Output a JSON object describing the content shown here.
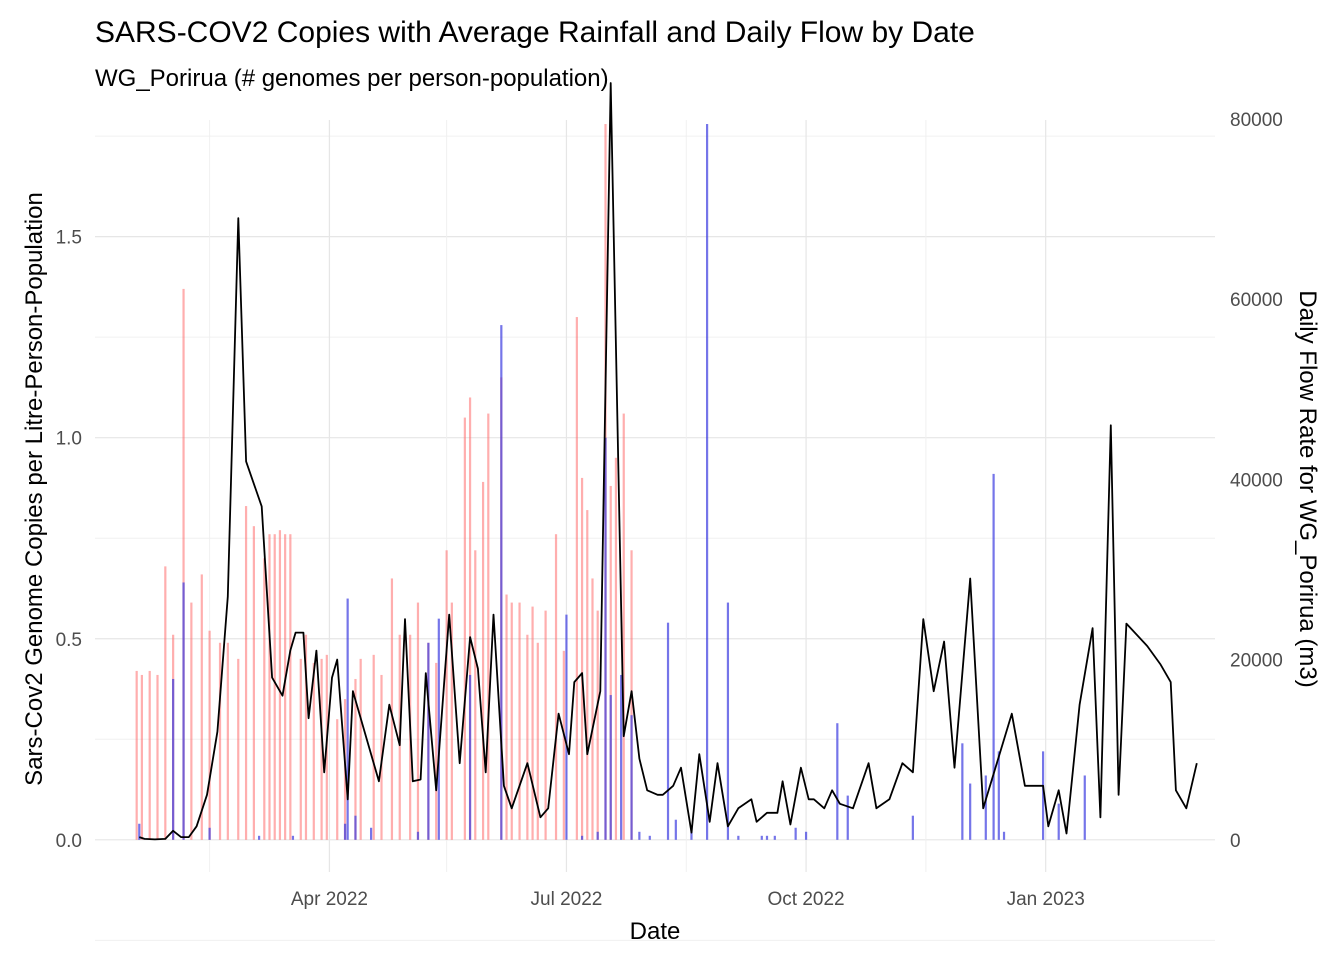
{
  "chart_data": {
    "type": "bar+line",
    "title": "SARS-COV2 Copies with Average Rainfall and Daily Flow by Date",
    "subtitle": "WG_Porirua (# genomes per person-population)",
    "xlabel": "Date",
    "ylabel": "Sars-Cov2 Genome Copies per Litre-Person-Population",
    "y2label": "Daily Flow Rate for WG_Porirua (m3)",
    "x_ticks": [
      "Apr 2022",
      "Jul 2022",
      "Oct 2022",
      "Jan 2023"
    ],
    "y_ticks": [
      "0.0",
      "0.5",
      "1.0",
      "1.5"
    ],
    "y2_ticks": [
      "0",
      "20000",
      "40000",
      "60000",
      "80000"
    ],
    "ylim": [
      -0.08,
      1.79
    ],
    "y2lim": [
      0,
      80000
    ],
    "grid": true,
    "series": [
      {
        "kind": "bar",
        "color": "#ff6b6b",
        "opacity": 0.55,
        "points": [
          [
            "2022-01-17",
            0.42
          ],
          [
            "2022-01-19",
            0.41
          ],
          [
            "2022-01-22",
            0.42
          ],
          [
            "2022-01-25",
            0.41
          ],
          [
            "2022-01-28",
            0.68
          ],
          [
            "2022-01-31",
            0.51
          ],
          [
            "2022-02-04",
            1.37
          ],
          [
            "2022-02-07",
            0.59
          ],
          [
            "2022-02-11",
            0.66
          ],
          [
            "2022-02-14",
            0.52
          ],
          [
            "2022-02-18",
            0.49
          ],
          [
            "2022-02-21",
            0.49
          ],
          [
            "2022-02-25",
            0.45
          ],
          [
            "2022-02-28",
            0.83
          ],
          [
            "2022-03-03",
            0.78
          ],
          [
            "2022-03-07",
            0.7
          ],
          [
            "2022-03-09",
            0.76
          ],
          [
            "2022-03-11",
            0.76
          ],
          [
            "2022-03-13",
            0.77
          ],
          [
            "2022-03-15",
            0.76
          ],
          [
            "2022-03-17",
            0.76
          ],
          [
            "2022-03-21",
            0.45
          ],
          [
            "2022-03-23",
            0.51
          ],
          [
            "2022-03-26",
            0.44
          ],
          [
            "2022-03-29",
            0.45
          ],
          [
            "2022-03-31",
            0.46
          ],
          [
            "2022-04-04",
            0.3
          ],
          [
            "2022-04-07",
            0.35
          ],
          [
            "2022-04-11",
            0.4
          ],
          [
            "2022-04-13",
            0.45
          ],
          [
            "2022-04-18",
            0.46
          ],
          [
            "2022-04-21",
            0.41
          ],
          [
            "2022-04-25",
            0.65
          ],
          [
            "2022-04-28",
            0.51
          ],
          [
            "2022-05-02",
            0.51
          ],
          [
            "2022-05-05",
            0.59
          ],
          [
            "2022-05-09",
            0.49
          ],
          [
            "2022-05-12",
            0.44
          ],
          [
            "2022-05-16",
            0.72
          ],
          [
            "2022-05-18",
            0.59
          ],
          [
            "2022-05-23",
            1.05
          ],
          [
            "2022-05-25",
            1.1
          ],
          [
            "2022-05-27",
            0.72
          ],
          [
            "2022-05-30",
            0.89
          ],
          [
            "2022-06-01",
            1.06
          ],
          [
            "2022-06-06",
            1.15
          ],
          [
            "2022-06-08",
            0.61
          ],
          [
            "2022-06-10",
            0.59
          ],
          [
            "2022-06-13",
            0.59
          ],
          [
            "2022-06-16",
            0.51
          ],
          [
            "2022-06-18",
            0.58
          ],
          [
            "2022-06-20",
            0.49
          ],
          [
            "2022-06-23",
            0.57
          ],
          [
            "2022-06-27",
            0.76
          ],
          [
            "2022-06-30",
            0.47
          ],
          [
            "2022-07-05",
            1.3
          ],
          [
            "2022-07-07",
            0.9
          ],
          [
            "2022-07-09",
            0.82
          ],
          [
            "2022-07-11",
            0.65
          ],
          [
            "2022-07-13",
            0.57
          ],
          [
            "2022-07-16",
            1.78
          ],
          [
            "2022-07-18",
            0.88
          ],
          [
            "2022-07-20",
            0.95
          ],
          [
            "2022-07-23",
            1.06
          ],
          [
            "2022-07-26",
            0.72
          ]
        ]
      },
      {
        "kind": "bar",
        "color": "#3a3ae0",
        "opacity": 0.7,
        "points": [
          [
            "2022-01-18",
            0.04
          ],
          [
            "2022-01-31",
            0.4
          ],
          [
            "2022-02-04",
            0.64
          ],
          [
            "2022-02-14",
            0.03
          ],
          [
            "2022-03-05",
            0.01
          ],
          [
            "2022-03-18",
            0.01
          ],
          [
            "2022-04-07",
            0.04
          ],
          [
            "2022-04-08",
            0.6
          ],
          [
            "2022-04-11",
            0.06
          ],
          [
            "2022-04-17",
            0.03
          ],
          [
            "2022-05-05",
            0.02
          ],
          [
            "2022-05-09",
            0.49
          ],
          [
            "2022-05-13",
            0.55
          ],
          [
            "2022-05-25",
            0.41
          ],
          [
            "2022-06-06",
            1.28
          ],
          [
            "2022-07-01",
            0.56
          ],
          [
            "2022-07-07",
            0.01
          ],
          [
            "2022-07-13",
            0.02
          ],
          [
            "2022-07-16",
            1.0
          ],
          [
            "2022-07-18",
            0.36
          ],
          [
            "2022-07-22",
            0.41
          ],
          [
            "2022-07-26",
            0.31
          ],
          [
            "2022-07-29",
            0.02
          ],
          [
            "2022-08-02",
            0.01
          ],
          [
            "2022-08-09",
            0.54
          ],
          [
            "2022-08-12",
            0.05
          ],
          [
            "2022-08-18",
            0.03
          ],
          [
            "2022-08-24",
            1.78
          ],
          [
            "2022-09-01",
            0.59
          ],
          [
            "2022-09-05",
            0.01
          ],
          [
            "2022-09-14",
            0.01
          ],
          [
            "2022-09-16",
            0.01
          ],
          [
            "2022-09-19",
            0.01
          ],
          [
            "2022-09-27",
            0.03
          ],
          [
            "2022-10-01",
            0.02
          ],
          [
            "2022-10-13",
            0.29
          ],
          [
            "2022-10-17",
            0.11
          ],
          [
            "2022-11-11",
            0.06
          ],
          [
            "2022-11-30",
            0.24
          ],
          [
            "2022-12-03",
            0.14
          ],
          [
            "2022-12-09",
            0.16
          ],
          [
            "2022-12-12",
            0.91
          ],
          [
            "2022-12-14",
            0.22
          ],
          [
            "2022-12-16",
            0.02
          ],
          [
            "2022-12-31",
            0.22
          ],
          [
            "2023-01-06",
            0.09
          ],
          [
            "2023-01-16",
            0.16
          ]
        ]
      },
      {
        "kind": "line",
        "axis": "y2",
        "color": "#000000",
        "points": [
          [
            "2022-01-18",
            300
          ],
          [
            "2022-01-20",
            100
          ],
          [
            "2022-01-24",
            50
          ],
          [
            "2022-01-28",
            100
          ],
          [
            "2022-01-31",
            1000
          ],
          [
            "2022-02-03",
            300
          ],
          [
            "2022-02-06",
            300
          ],
          [
            "2022-02-09",
            1500
          ],
          [
            "2022-02-13",
            5000
          ],
          [
            "2022-02-17",
            12000
          ],
          [
            "2022-02-21",
            27000
          ],
          [
            "2022-02-25",
            69000
          ],
          [
            "2022-02-28",
            42000
          ],
          [
            "2022-03-06",
            37000
          ],
          [
            "2022-03-10",
            18000
          ],
          [
            "2022-03-14",
            16000
          ],
          [
            "2022-03-17",
            21000
          ],
          [
            "2022-03-19",
            23000
          ],
          [
            "2022-03-22",
            23000
          ],
          [
            "2022-03-24",
            13500
          ],
          [
            "2022-03-27",
            21000
          ],
          [
            "2022-03-30",
            7500
          ],
          [
            "2022-04-02",
            18000
          ],
          [
            "2022-04-04",
            20000
          ],
          [
            "2022-04-08",
            4500
          ],
          [
            "2022-04-10",
            16500
          ],
          [
            "2022-04-20",
            6500
          ],
          [
            "2022-04-24",
            15000
          ],
          [
            "2022-04-28",
            10500
          ],
          [
            "2022-04-30",
            24500
          ],
          [
            "2022-05-03",
            6500
          ],
          [
            "2022-05-06",
            6700
          ],
          [
            "2022-05-08",
            18500
          ],
          [
            "2022-05-12",
            5500
          ],
          [
            "2022-05-17",
            25000
          ],
          [
            "2022-05-21",
            8500
          ],
          [
            "2022-05-25",
            22500
          ],
          [
            "2022-05-28",
            19000
          ],
          [
            "2022-05-31",
            7500
          ],
          [
            "2022-06-03",
            25000
          ],
          [
            "2022-06-07",
            6000
          ],
          [
            "2022-06-10",
            3500
          ],
          [
            "2022-06-16",
            8500
          ],
          [
            "2022-06-21",
            2500
          ],
          [
            "2022-06-24",
            3500
          ],
          [
            "2022-06-28",
            14000
          ],
          [
            "2022-07-02",
            9500
          ],
          [
            "2022-07-04",
            17500
          ],
          [
            "2022-07-07",
            18500
          ],
          [
            "2022-07-09",
            9500
          ],
          [
            "2022-07-14",
            16500
          ],
          [
            "2022-07-18",
            84000
          ],
          [
            "2022-07-23",
            11500
          ],
          [
            "2022-07-26",
            16500
          ],
          [
            "2022-07-29",
            9000
          ],
          [
            "2022-08-01",
            5500
          ],
          [
            "2022-08-05",
            5000
          ],
          [
            "2022-08-07",
            5000
          ],
          [
            "2022-08-11",
            6000
          ],
          [
            "2022-08-14",
            8000
          ],
          [
            "2022-08-18",
            800
          ],
          [
            "2022-08-21",
            9500
          ],
          [
            "2022-08-25",
            2000
          ],
          [
            "2022-08-28",
            8500
          ],
          [
            "2022-09-01",
            1500
          ],
          [
            "2022-09-05",
            3500
          ],
          [
            "2022-09-10",
            4500
          ],
          [
            "2022-09-12",
            2000
          ],
          [
            "2022-09-16",
            3000
          ],
          [
            "2022-09-20",
            3000
          ],
          [
            "2022-09-22",
            6500
          ],
          [
            "2022-09-25",
            1700
          ],
          [
            "2022-09-29",
            8000
          ],
          [
            "2022-10-02",
            4500
          ],
          [
            "2022-10-04",
            4500
          ],
          [
            "2022-10-08",
            3500
          ],
          [
            "2022-10-11",
            5500
          ],
          [
            "2022-10-14",
            4000
          ],
          [
            "2022-10-19",
            3500
          ],
          [
            "2022-10-25",
            8500
          ],
          [
            "2022-10-28",
            3500
          ],
          [
            "2022-11-02",
            4500
          ],
          [
            "2022-11-07",
            8500
          ],
          [
            "2022-11-11",
            7500
          ],
          [
            "2022-11-15",
            24500
          ],
          [
            "2022-11-19",
            16500
          ],
          [
            "2022-11-23",
            22000
          ],
          [
            "2022-11-27",
            8000
          ],
          [
            "2022-12-03",
            29000
          ],
          [
            "2022-12-08",
            3500
          ],
          [
            "2022-12-19",
            14000
          ],
          [
            "2022-12-24",
            6000
          ],
          [
            "2022-12-28",
            6000
          ],
          [
            "2022-12-31",
            6000
          ],
          [
            "2023-01-02",
            1500
          ],
          [
            "2023-01-06",
            5500
          ],
          [
            "2023-01-09",
            700
          ],
          [
            "2023-01-14",
            15000
          ],
          [
            "2023-01-19",
            23500
          ],
          [
            "2023-01-22",
            2500
          ],
          [
            "2023-01-26",
            46000
          ],
          [
            "2023-01-29",
            5000
          ],
          [
            "2023-02-01",
            24000
          ],
          [
            "2023-02-09",
            21500
          ],
          [
            "2023-02-14",
            19500
          ],
          [
            "2023-02-18",
            17500
          ],
          [
            "2023-02-20",
            5500
          ],
          [
            "2023-02-24",
            3500
          ],
          [
            "2023-02-28",
            8500
          ]
        ]
      }
    ]
  }
}
